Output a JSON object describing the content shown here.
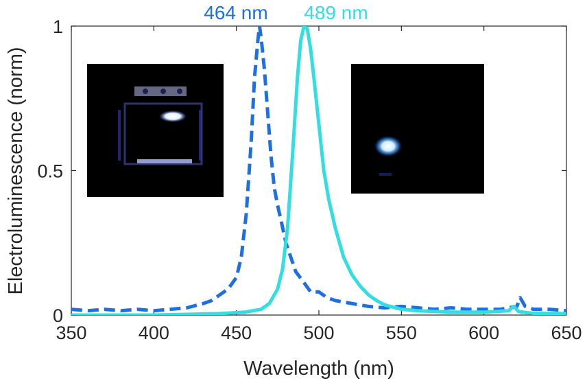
{
  "chart_data": {
    "type": "line",
    "title": "",
    "xlabel": "Wavelength (nm)",
    "ylabel": "Electroluminescence (norm)",
    "xlim": [
      350,
      650
    ],
    "ylim": [
      0,
      1
    ],
    "xticks": [
      350,
      400,
      450,
      500,
      550,
      600,
      650
    ],
    "yticks": [
      0,
      0.5,
      1
    ],
    "ytick_labels": [
      "0",
      "0.5",
      "1"
    ],
    "grid": false,
    "legend": "none",
    "annotations": [
      {
        "text": "464 nm",
        "color": "#1f6fe0",
        "x": 464
      },
      {
        "text": "489 nm",
        "color": "#33dde0",
        "x": 489
      }
    ],
    "series": [
      {
        "style": "dashed",
        "color": "#1f6fe0",
        "x": [
          350,
          360,
          370,
          380,
          390,
          400,
          410,
          420,
          430,
          435,
          440,
          445,
          450,
          453,
          456,
          459,
          461,
          463,
          464,
          465,
          467,
          469,
          471,
          473,
          475,
          477,
          480,
          483,
          486,
          490,
          495,
          500,
          505,
          510,
          520,
          530,
          540,
          550,
          560,
          570,
          580,
          590,
          600,
          610,
          620,
          622,
          625,
          630,
          640,
          650
        ],
        "values": [
          0.02,
          0.015,
          0.02,
          0.015,
          0.02,
          0.015,
          0.02,
          0.025,
          0.04,
          0.05,
          0.07,
          0.09,
          0.13,
          0.2,
          0.35,
          0.6,
          0.82,
          0.95,
          1.0,
          0.96,
          0.85,
          0.7,
          0.55,
          0.44,
          0.38,
          0.33,
          0.25,
          0.2,
          0.15,
          0.12,
          0.08,
          0.08,
          0.06,
          0.05,
          0.04,
          0.03,
          0.025,
          0.03,
          0.025,
          0.02,
          0.025,
          0.02,
          0.02,
          0.02,
          0.03,
          0.06,
          0.03,
          0.02,
          0.02,
          0.015
        ]
      },
      {
        "style": "solid",
        "color": "#33dde0",
        "x": [
          350,
          400,
          440,
          455,
          465,
          470,
          475,
          478,
          481,
          484,
          487,
          489,
          491,
          493,
          495,
          497,
          500,
          503,
          506,
          510,
          515,
          520,
          525,
          530,
          535,
          540,
          550,
          560,
          580,
          600,
          615,
          618,
          621,
          630,
          650
        ],
        "values": [
          0.0,
          0.0,
          0.005,
          0.01,
          0.02,
          0.04,
          0.09,
          0.16,
          0.3,
          0.55,
          0.82,
          0.95,
          1.0,
          0.99,
          0.92,
          0.82,
          0.66,
          0.5,
          0.4,
          0.3,
          0.2,
          0.14,
          0.1,
          0.07,
          0.05,
          0.035,
          0.02,
          0.015,
          0.01,
          0.01,
          0.015,
          0.03,
          0.012,
          0.006,
          0.005
        ]
      }
    ]
  },
  "insets": [
    {
      "label": "device-photo-left"
    },
    {
      "label": "device-photo-right"
    }
  ]
}
